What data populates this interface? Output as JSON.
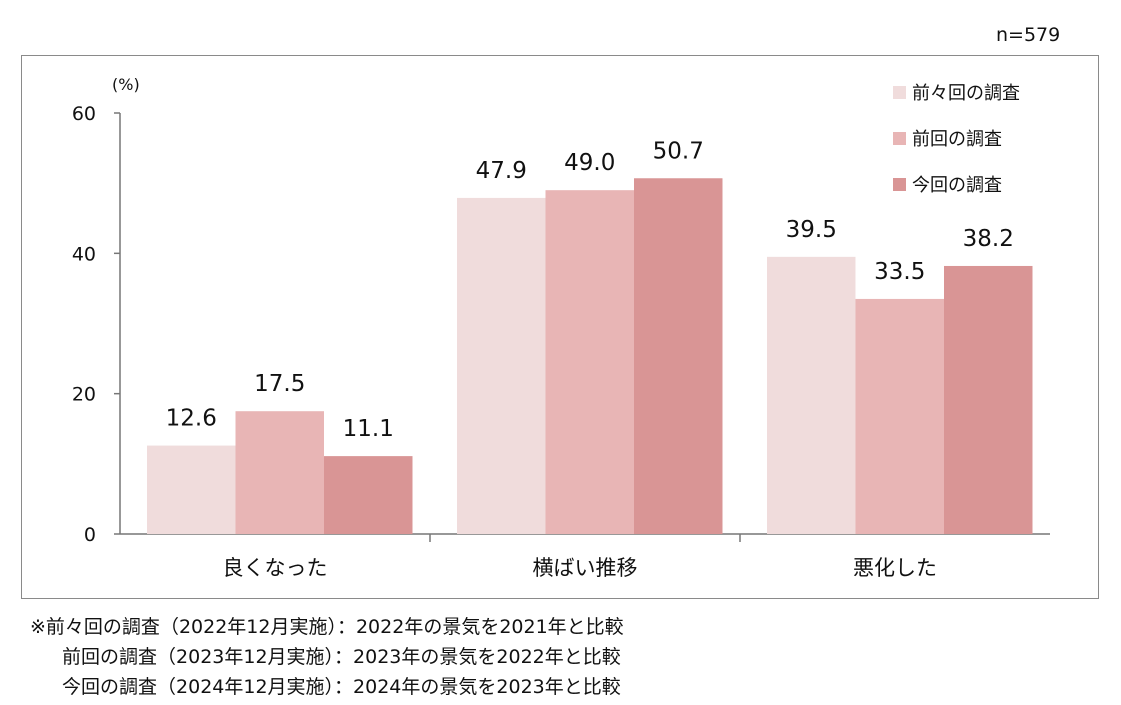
{
  "sample_size": "n=579",
  "chart_data": {
    "type": "bar",
    "unit_label": "(%)",
    "categories": [
      "良くなった",
      "横ばい推移",
      "悪化した"
    ],
    "series": [
      {
        "name": "前々回の調査",
        "color": "#f0dcdc",
        "values": [
          12.6,
          47.9,
          39.5
        ],
        "labels": [
          "12.6",
          "47.9",
          "39.5"
        ]
      },
      {
        "name": "前回の調査",
        "color": "#e8b5b5",
        "values": [
          17.5,
          49.0,
          33.5
        ],
        "labels": [
          "17.5",
          "49.0",
          "33.5"
        ]
      },
      {
        "name": "今回の調査",
        "color": "#d99595",
        "values": [
          11.1,
          50.7,
          38.2
        ],
        "labels": [
          "11.1",
          "50.7",
          "38.2"
        ]
      }
    ],
    "ylim": [
      0,
      60
    ],
    "yticks": [
      0,
      20,
      40,
      60
    ],
    "grid": false,
    "legend_position": "top-right"
  },
  "notes": [
    {
      "prefix": "※",
      "name": "前々回の調査",
      "period": "（2022年12月実施）",
      "description": "：2022年の景気を2021年と比較"
    },
    {
      "prefix": "",
      "name": "前回の調査",
      "period": "（2023年12月実施）",
      "description": "：2023年の景気を2022年と比較"
    },
    {
      "prefix": "",
      "name": "今回の調査",
      "period": "（2024年12月実施）",
      "description": "：2024年の景気を2023年と比較"
    }
  ]
}
